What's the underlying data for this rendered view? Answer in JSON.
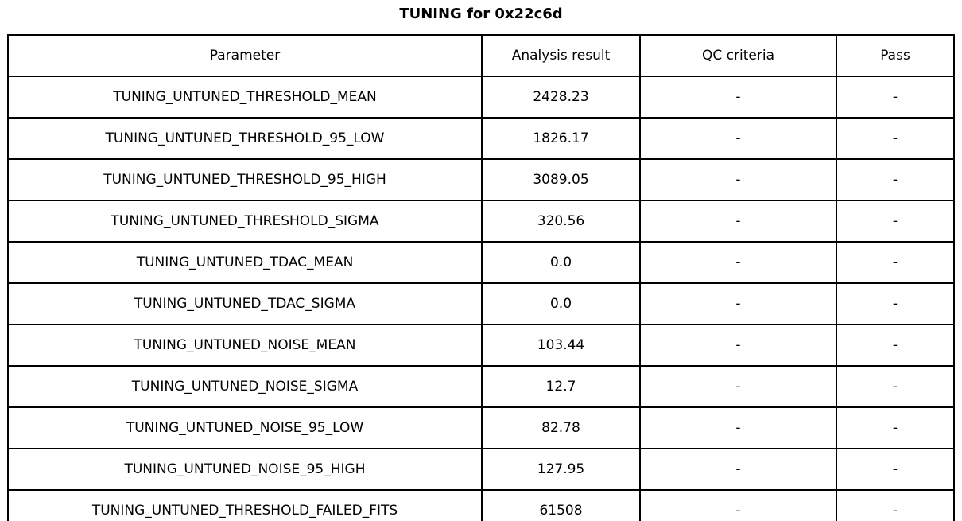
{
  "title": "TUNING for 0x22c6d",
  "table": {
    "headers": {
      "parameter": "Parameter",
      "analysis_result": "Analysis result",
      "qc_criteria": "QC criteria",
      "pass": "Pass"
    },
    "rows": [
      {
        "parameter": "TUNING_UNTUNED_THRESHOLD_MEAN",
        "analysis_result": "2428.23",
        "qc_criteria": "-",
        "pass": "-"
      },
      {
        "parameter": "TUNING_UNTUNED_THRESHOLD_95_LOW",
        "analysis_result": "1826.17",
        "qc_criteria": "-",
        "pass": "-"
      },
      {
        "parameter": "TUNING_UNTUNED_THRESHOLD_95_HIGH",
        "analysis_result": "3089.05",
        "qc_criteria": "-",
        "pass": "-"
      },
      {
        "parameter": "TUNING_UNTUNED_THRESHOLD_SIGMA",
        "analysis_result": "320.56",
        "qc_criteria": "-",
        "pass": "-"
      },
      {
        "parameter": "TUNING_UNTUNED_TDAC_MEAN",
        "analysis_result": "0.0",
        "qc_criteria": "-",
        "pass": "-"
      },
      {
        "parameter": "TUNING_UNTUNED_TDAC_SIGMA",
        "analysis_result": "0.0",
        "qc_criteria": "-",
        "pass": "-"
      },
      {
        "parameter": "TUNING_UNTUNED_NOISE_MEAN",
        "analysis_result": "103.44",
        "qc_criteria": "-",
        "pass": "-"
      },
      {
        "parameter": "TUNING_UNTUNED_NOISE_SIGMA",
        "analysis_result": "12.7",
        "qc_criteria": "-",
        "pass": "-"
      },
      {
        "parameter": "TUNING_UNTUNED_NOISE_95_LOW",
        "analysis_result": "82.78",
        "qc_criteria": "-",
        "pass": "-"
      },
      {
        "parameter": "TUNING_UNTUNED_NOISE_95_HIGH",
        "analysis_result": "127.95",
        "qc_criteria": "-",
        "pass": "-"
      },
      {
        "parameter": "TUNING_UNTUNED_THRESHOLD_FAILED_FITS",
        "analysis_result": "61508",
        "qc_criteria": "-",
        "pass": "-"
      }
    ]
  },
  "chart_data": {
    "type": "table",
    "title": "TUNING for 0x22c6d",
    "columns": [
      "Parameter",
      "Analysis result",
      "QC criteria",
      "Pass"
    ],
    "rows": [
      [
        "TUNING_UNTUNED_THRESHOLD_MEAN",
        "2428.23",
        "-",
        "-"
      ],
      [
        "TUNING_UNTUNED_THRESHOLD_95_LOW",
        "1826.17",
        "-",
        "-"
      ],
      [
        "TUNING_UNTUNED_THRESHOLD_95_HIGH",
        "3089.05",
        "-",
        "-"
      ],
      [
        "TUNING_UNTUNED_THRESHOLD_SIGMA",
        "320.56",
        "-",
        "-"
      ],
      [
        "TUNING_UNTUNED_TDAC_MEAN",
        "0.0",
        "-",
        "-"
      ],
      [
        "TUNING_UNTUNED_TDAC_SIGMA",
        "0.0",
        "-",
        "-"
      ],
      [
        "TUNING_UNTUNED_NOISE_MEAN",
        "103.44",
        "-",
        "-"
      ],
      [
        "TUNING_UNTUNED_NOISE_SIGMA",
        "12.7",
        "-",
        "-"
      ],
      [
        "TUNING_UNTUNED_NOISE_95_LOW",
        "82.78",
        "-",
        "-"
      ],
      [
        "TUNING_UNTUNED_NOISE_95_HIGH",
        "127.95",
        "-",
        "-"
      ],
      [
        "TUNING_UNTUNED_THRESHOLD_FAILED_FITS",
        "61508",
        "-",
        "-"
      ]
    ],
    "layout": {
      "grid": true,
      "cell_text_align": "center",
      "border_color": "#000000",
      "background": "#ffffff"
    }
  }
}
